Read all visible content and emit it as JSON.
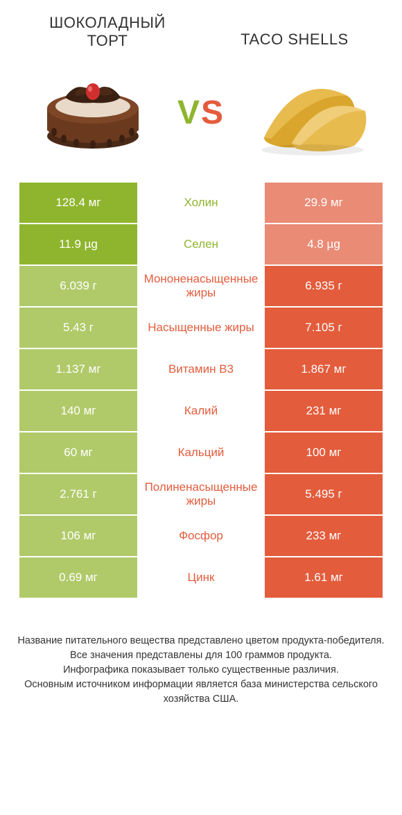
{
  "header": {
    "left_title": "ШОКОЛАДНЫЙ ТОРТ",
    "right_title": "TACO SHELLS",
    "vs_v": "V",
    "vs_s": "S"
  },
  "colors": {
    "left_win": "#8fb52e",
    "left_lose": "#b0ca6a",
    "right_win": "#e35c3c",
    "right_lose": "#ea8b76",
    "mid_left_text": "#8fb52e",
    "mid_right_text": "#e35c3c"
  },
  "icons": {
    "left": "cake-icon",
    "right": "taco-icon"
  },
  "rows": [
    {
      "left": "128.4 мг",
      "mid": "Холин",
      "right": "29.9 мг",
      "winner": "left"
    },
    {
      "left": "11.9 µg",
      "mid": "Селен",
      "right": "4.8 µg",
      "winner": "left"
    },
    {
      "left": "6.039 г",
      "mid": "Мононенасыщенные жиры",
      "right": "6.935 г",
      "winner": "right"
    },
    {
      "left": "5.43 г",
      "mid": "Насыщенные жиры",
      "right": "7.105 г",
      "winner": "right"
    },
    {
      "left": "1.137 мг",
      "mid": "Витамин B3",
      "right": "1.867 мг",
      "winner": "right"
    },
    {
      "left": "140 мг",
      "mid": "Калий",
      "right": "231 мг",
      "winner": "right"
    },
    {
      "left": "60 мг",
      "mid": "Кальций",
      "right": "100 мг",
      "winner": "right"
    },
    {
      "left": "2.761 г",
      "mid": "Полиненасыщенные жиры",
      "right": "5.495 г",
      "winner": "right"
    },
    {
      "left": "106 мг",
      "mid": "Фосфор",
      "right": "233 мг",
      "winner": "right"
    },
    {
      "left": "0.69 мг",
      "mid": "Цинк",
      "right": "1.61 мг",
      "winner": "right"
    }
  ],
  "footer": {
    "line1": "Название питательного вещества представлено цветом продукта-победителя.",
    "line2": "Все значения представлены для 100 граммов продукта.",
    "line3": "Инфографика показывает только существенные различия.",
    "line4": "Основным источником информации является база министерства сельского хозяйства США."
  }
}
